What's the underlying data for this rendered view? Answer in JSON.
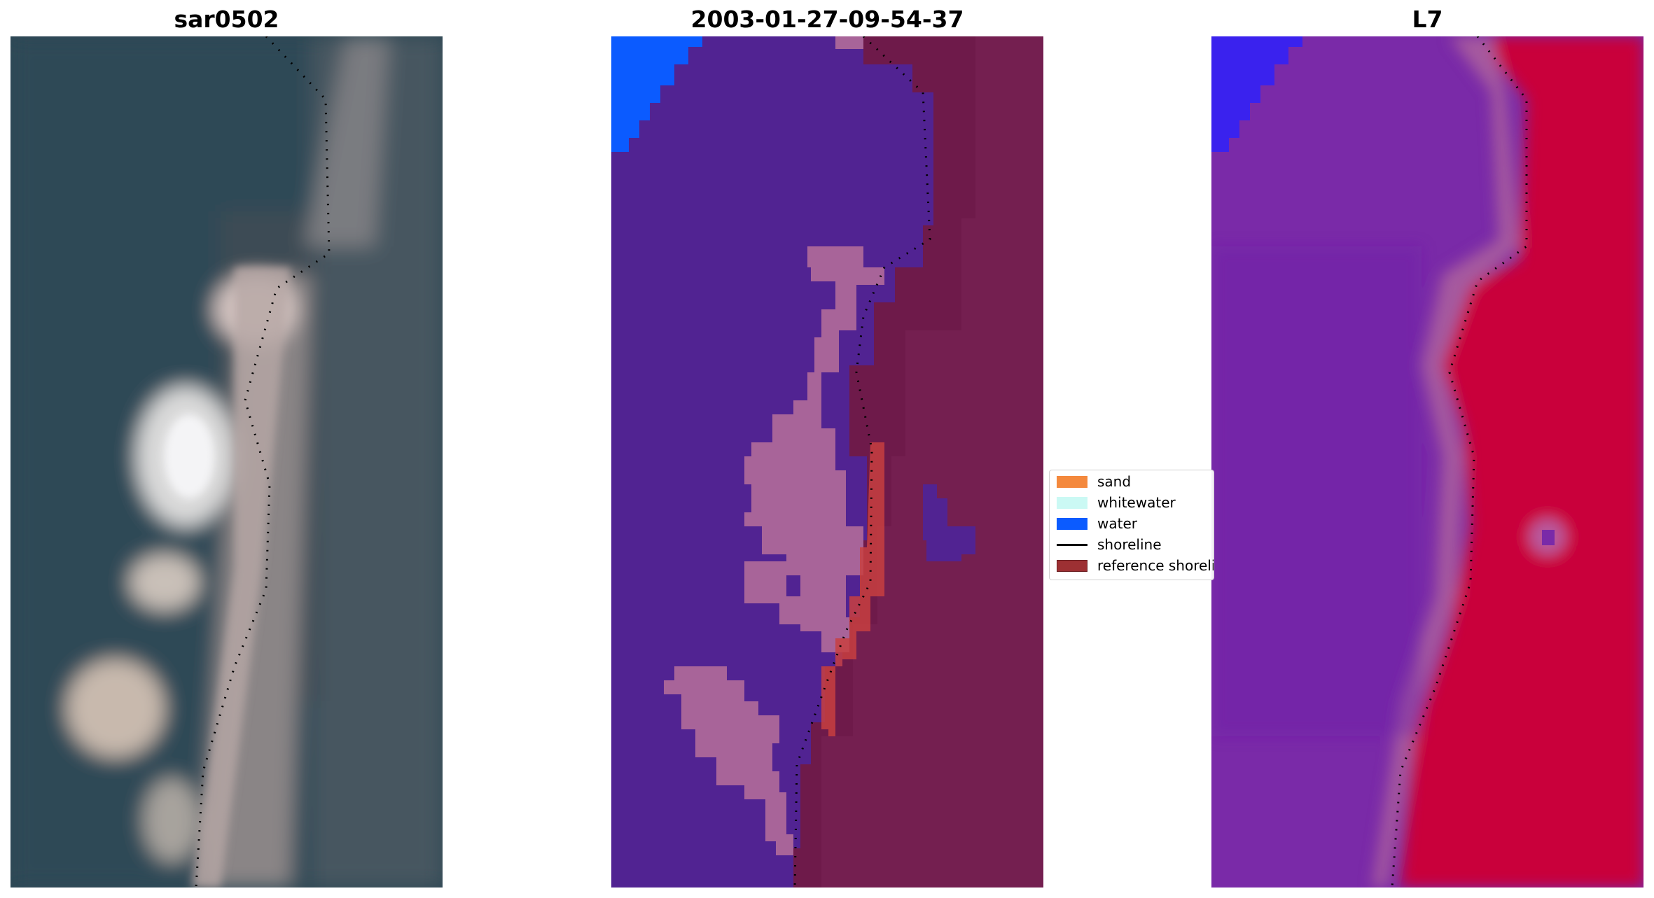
{
  "panels": [
    {
      "title": "sar0502"
    },
    {
      "title": "2003-01-27-09-54-37"
    },
    {
      "title": "L7"
    }
  ],
  "legend": {
    "items": [
      {
        "label": "sand",
        "color": "#f4893d",
        "type": "patch"
      },
      {
        "label": "whitewater",
        "color": "#cbf9f4",
        "type": "patch"
      },
      {
        "label": "water",
        "color": "#0b5bff",
        "type": "patch"
      },
      {
        "label": "shoreline",
        "color": "#000000",
        "type": "line"
      },
      {
        "label": "reference shoreline buffer",
        "color": "#9d3033",
        "type": "patch"
      }
    ]
  },
  "colors": {
    "rgb_water": "#2f4d5a",
    "rgb_sand": "#e7d7d3",
    "classified_water": "#512392",
    "classified_land": "#6e1a4a",
    "classified_pink": "#a86499",
    "index_water": "#7a2aa8",
    "index_land": "#c9003a",
    "bright_blue": "#0b5bff"
  }
}
